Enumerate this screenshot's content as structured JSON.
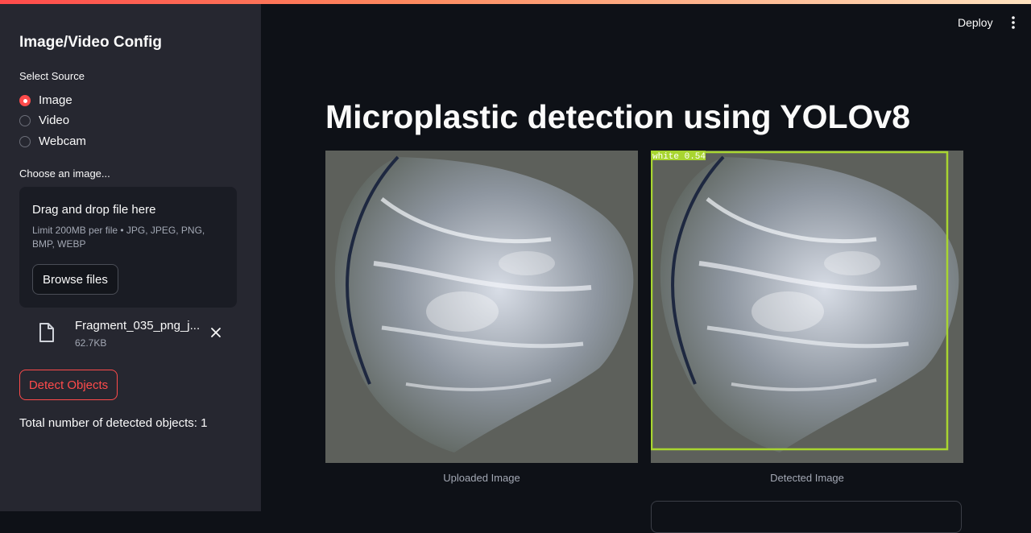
{
  "sidebar": {
    "title": "Image/Video Config",
    "source_label": "Select Source",
    "sources": [
      {
        "label": "Image",
        "selected": true
      },
      {
        "label": "Video",
        "selected": false
      },
      {
        "label": "Webcam",
        "selected": false
      }
    ],
    "uploader": {
      "label": "Choose an image...",
      "drop_text": "Drag and drop file here",
      "limit_text": "Limit 200MB per file • JPG, JPEG, PNG, BMP, WEBP",
      "browse_label": "Browse files"
    },
    "file": {
      "name": "Fragment_035_png_j...",
      "size": "62.7KB"
    },
    "detect_label": "Detect Objects",
    "total_text": "Total number of detected objects: 1"
  },
  "header": {
    "deploy_label": "Deploy"
  },
  "main": {
    "title": "Microplastic detection using YOLOv8",
    "uploaded_caption": "Uploaded Image",
    "detected_caption": "Detected Image",
    "detection": {
      "label": "white 0.54",
      "box_color": "#a8d530"
    }
  },
  "colors": {
    "accent": "#ff4b4b",
    "sidebar_bg": "#262730",
    "app_bg": "#0e1117"
  }
}
